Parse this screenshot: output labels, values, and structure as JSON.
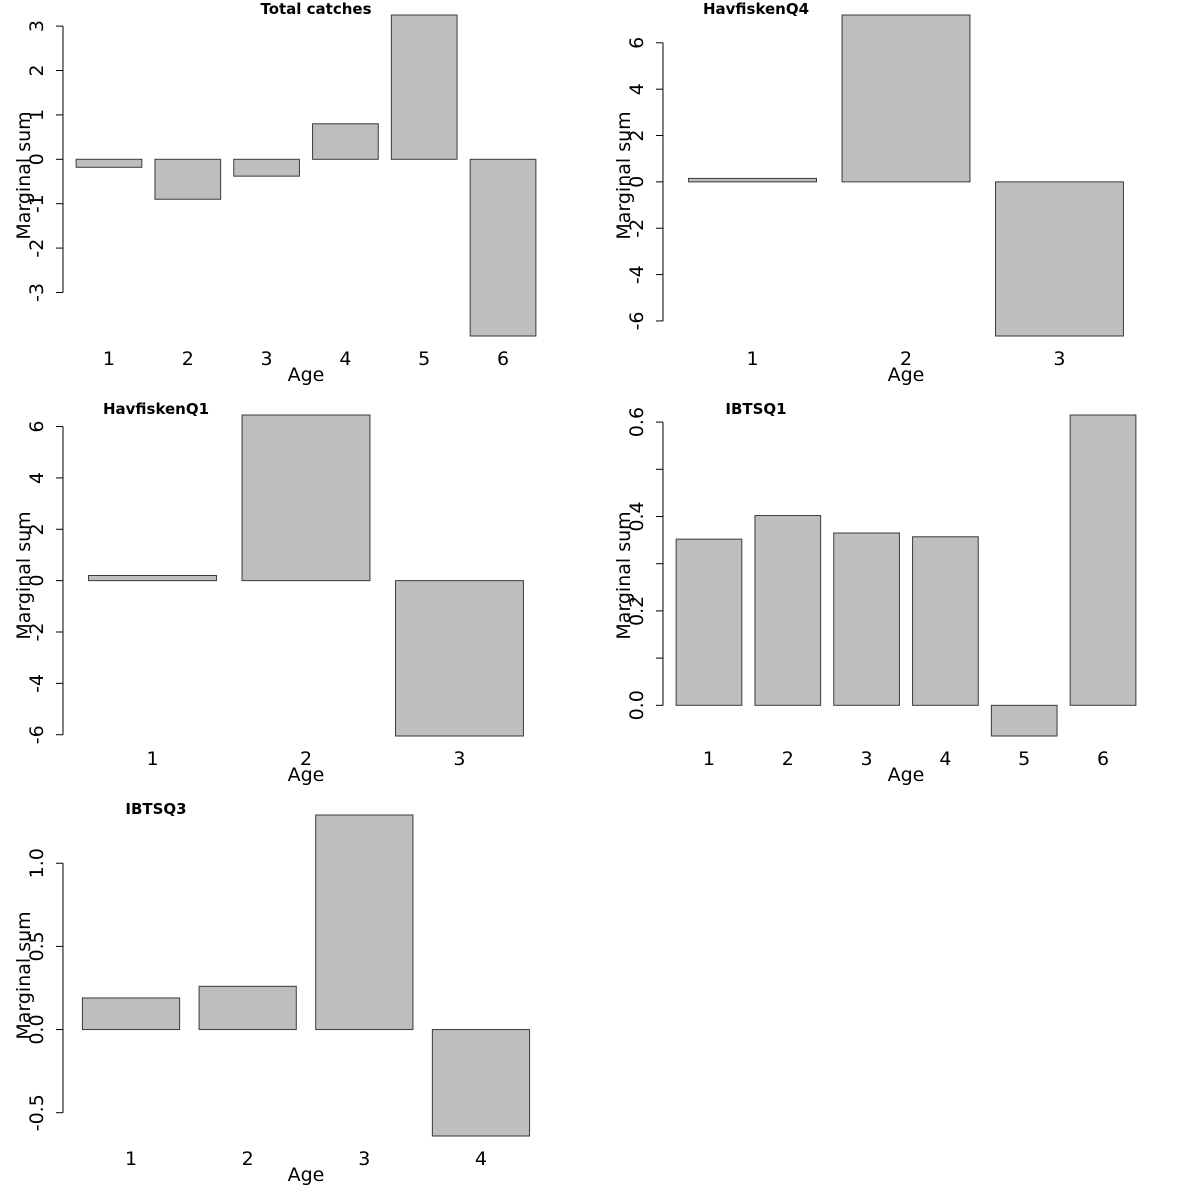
{
  "chart_data": [
    {
      "type": "bar",
      "title": "Total catches",
      "xlabel": "Age",
      "ylabel": "Marginal sum",
      "categories": [
        "1",
        "2",
        "3",
        "4",
        "5",
        "6"
      ],
      "values": [
        -0.18,
        -0.9,
        -0.38,
        0.8,
        3.25,
        -3.98
      ],
      "ylim": [
        -3.98,
        3.25
      ],
      "yticks": [
        -3,
        -2,
        -1,
        0,
        1,
        2,
        3
      ],
      "ytick_labels": [
        "-3",
        "-2",
        "-1",
        "0",
        "1",
        "2",
        "3"
      ],
      "grid": false,
      "legend": "none"
    },
    {
      "type": "bar",
      "title": "HavfiskenQ4",
      "xlabel": "Age",
      "ylabel": "Marginal sum",
      "categories": [
        "1",
        "2",
        "3"
      ],
      "values": [
        0.15,
        7.2,
        -6.65
      ],
      "ylim": [
        -6.65,
        7.2
      ],
      "yticks": [
        -6,
        -4,
        -2,
        0,
        2,
        4,
        6
      ],
      "ytick_labels": [
        "-6",
        "-4",
        "-2",
        "0",
        "2",
        "4",
        "6"
      ],
      "grid": false,
      "legend": "none"
    },
    {
      "type": "bar",
      "title": "HavfiskenQ1",
      "xlabel": "Age",
      "ylabel": "Marginal sum",
      "categories": [
        "1",
        "2",
        "3"
      ],
      "values": [
        0.2,
        6.45,
        -6.05
      ],
      "ylim": [
        -6.05,
        6.45
      ],
      "yticks": [
        -6,
        -4,
        -2,
        0,
        2,
        4,
        6
      ],
      "ytick_labels": [
        "-6",
        "-4",
        "-2",
        "0",
        "2",
        "4",
        "6"
      ],
      "grid": false,
      "legend": "none"
    },
    {
      "type": "bar",
      "title": "IBTSQ1",
      "xlabel": "Age",
      "ylabel": "Marginal sum",
      "categories": [
        "1",
        "2",
        "3",
        "4",
        "5",
        "6"
      ],
      "values": [
        0.352,
        0.402,
        0.365,
        0.357,
        -0.065,
        0.615
      ],
      "ylim": [
        -0.065,
        0.615
      ],
      "yticks": [
        0.0,
        0.1,
        0.2,
        0.3,
        0.4,
        0.5,
        0.6
      ],
      "ytick_labels": [
        "0.0",
        "",
        "0.2",
        "",
        "0.4",
        "",
        "0.6"
      ],
      "grid": false,
      "legend": "none"
    },
    {
      "type": "bar",
      "title": "IBTSQ3",
      "xlabel": "Age",
      "ylabel": "Marginal sum",
      "categories": [
        "1",
        "2",
        "3",
        "4"
      ],
      "values": [
        0.19,
        0.26,
        1.29,
        -0.64
      ],
      "ylim": [
        -0.64,
        1.29
      ],
      "yticks": [
        -0.5,
        0.0,
        0.5,
        1.0
      ],
      "ytick_labels": [
        "-0.5",
        "0.0",
        "0.5",
        "1.0"
      ],
      "grid": false,
      "legend": "none"
    }
  ]
}
